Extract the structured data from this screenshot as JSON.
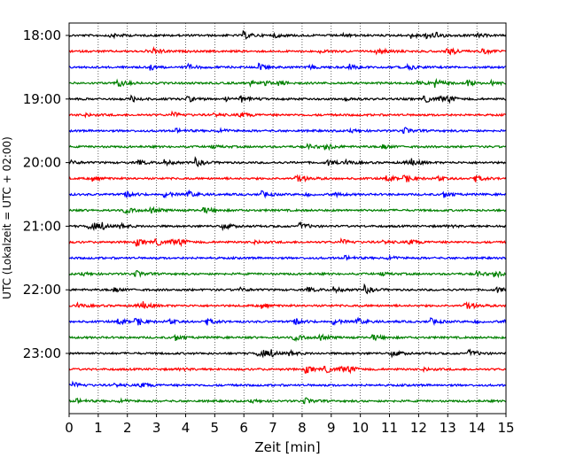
{
  "chart_data": {
    "type": "line",
    "xlabel": "Zeit  [min]",
    "ylabel": "UTC (Lokalzeit = UTC + 02:00)",
    "xlim": [
      0,
      15
    ],
    "xticks": [
      0,
      1,
      2,
      3,
      4,
      5,
      6,
      7,
      8,
      9,
      10,
      11,
      12,
      13,
      14,
      15
    ],
    "y_tick_labels": [
      "18:00",
      "19:00",
      "20:00",
      "21:00",
      "22:00",
      "23:00"
    ],
    "vertical_gridlines": "dotted, at every minute",
    "trace_colors": [
      "#000000",
      "#ff0000",
      "#0000ff",
      "#008000"
    ],
    "traces_start": "18:00",
    "trace_interval_min": 15,
    "trace_count": 24
  }
}
